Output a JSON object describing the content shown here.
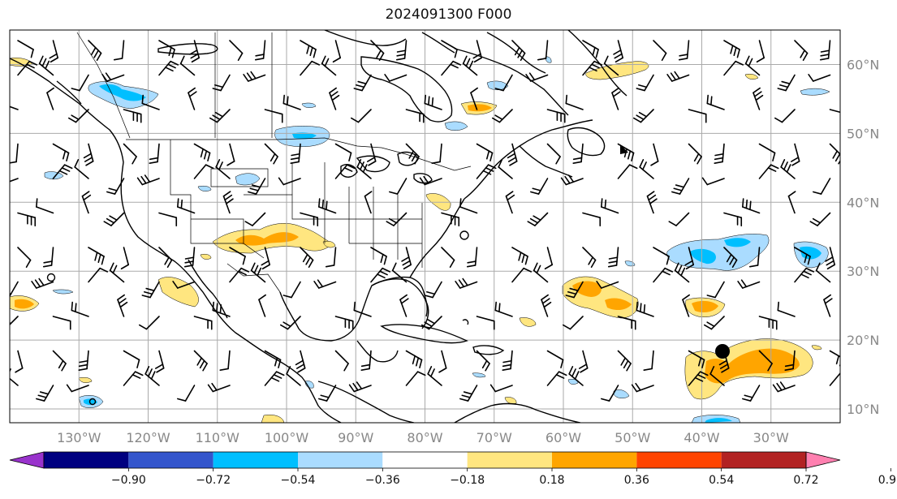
{
  "title": "2024091300 F000",
  "map": {
    "lon_range": [
      -140,
      -20
    ],
    "lat_range": [
      8,
      65
    ],
    "lat_labels": [
      "60°N",
      "50°N",
      "40°N",
      "30°N",
      "20°N",
      "10°N"
    ],
    "lon_labels": [
      "130°W",
      "120°W",
      "110°W",
      "100°W",
      "90°W",
      "80°W",
      "70°W",
      "60°W",
      "50°W",
      "40°W",
      "30°W"
    ],
    "grid_color": "#aaaaaa"
  },
  "colorbar": {
    "colors": [
      "#9933cc",
      "#000080",
      "#3355cc",
      "#00bfff",
      "#aadcff",
      "#ffffff",
      "#ffe680",
      "#ffa500",
      "#ff4400",
      "#b22222",
      "#ff80b0"
    ],
    "tick_labels": [
      "−0.90",
      "−0.72",
      "−0.54",
      "−0.36",
      "−0.18",
      "0.18",
      "0.36",
      "0.54",
      "0.72",
      "0.90"
    ]
  },
  "storm_marker_icon": "filled-circle-icon"
}
